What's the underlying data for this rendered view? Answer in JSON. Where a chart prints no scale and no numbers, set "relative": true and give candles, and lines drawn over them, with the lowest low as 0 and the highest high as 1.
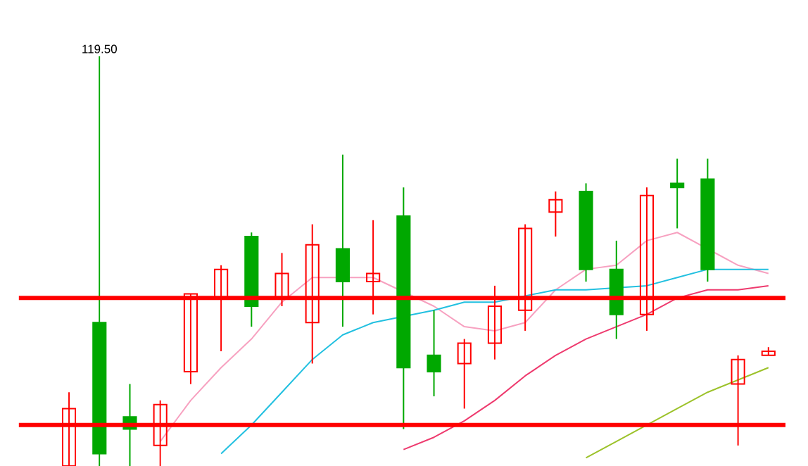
{
  "chart_data": {
    "type": "candlestick",
    "relative": true,
    "categories": [
      null,
      null,
      null,
      null,
      null,
      null,
      null,
      null,
      null,
      null,
      null,
      null,
      null,
      null,
      null,
      null,
      null,
      null,
      null,
      null,
      null,
      null,
      null,
      null
    ],
    "ohlc": [
      [
        0,
        0.18,
        0,
        0.14
      ],
      [
        0.35,
        1,
        0,
        0.03
      ],
      [
        0.12,
        0.2,
        0,
        0.09
      ],
      [
        0.05,
        0.16,
        0,
        0.15
      ],
      [
        0.23,
        0.42,
        0.2,
        0.42
      ],
      [
        0.41,
        0.49,
        0.28,
        0.48
      ],
      [
        0.56,
        0.57,
        0.34,
        0.39
      ],
      [
        0.41,
        0.52,
        0.39,
        0.47
      ],
      [
        0.35,
        0.59,
        0.25,
        0.54
      ],
      [
        0.53,
        0.76,
        0.34,
        0.45
      ],
      [
        0.45,
        0.6,
        0.37,
        0.47
      ],
      [
        0.61,
        0.68,
        0.09,
        0.24
      ],
      [
        0.27,
        0.38,
        0.17,
        0.23
      ],
      [
        0.25,
        0.31,
        0.14,
        0.3
      ],
      [
        0.3,
        0.44,
        0.26,
        0.39
      ],
      [
        0.38,
        0.59,
        0.33,
        0.58
      ],
      [
        0.62,
        0.67,
        0.56,
        0.65
      ],
      [
        0.67,
        0.69,
        0.45,
        0.48
      ],
      [
        0.48,
        0.55,
        0.31,
        0.37
      ],
      [
        0.37,
        0.68,
        0.33,
        0.66
      ],
      [
        0.69,
        0.75,
        0.58,
        0.68
      ],
      [
        0.7,
        0.75,
        0.45,
        0.48
      ],
      [
        0.2,
        0.27,
        0.05,
        0.26
      ],
      [
        0.27,
        0.29,
        0.27,
        0.28
      ]
    ],
    "colors": [
      "#ff0000",
      "#00a800",
      "#00a800",
      "#ff0000",
      "#ff0000",
      "#ff0000",
      "#00a800",
      "#ff0000",
      "#ff0000",
      "#00a800",
      "#ff0000",
      "#00a800",
      "#00a800",
      "#ff0000",
      "#ff0000",
      "#ff0000",
      "#ff0000",
      "#00a800",
      "#00a800",
      "#ff0000",
      "#00a800",
      "#00a800",
      "#ff0000",
      "#ff0000"
    ],
    "series": [
      {
        "type": "line",
        "color": "#f7a1c0",
        "values": [
          null,
          null,
          null,
          0.06,
          0.16,
          0.24,
          0.31,
          0.4,
          0.46,
          null,
          0.46,
          null,
          0.39,
          0.34,
          0.33,
          0.35,
          0.43,
          0.48,
          0.49,
          0.55,
          0.57,
          null,
          0.49,
          0.47
        ]
      },
      {
        "type": "line",
        "color": "#22c0e0",
        "values": [
          null,
          null,
          null,
          null,
          null,
          0.03,
          0.1,
          0.18,
          0.26,
          0.32,
          0.35,
          null,
          0.38,
          0.4,
          0.4,
          null,
          0.43,
          0.43,
          null,
          0.44,
          0.46,
          0.48,
          0.48,
          0.48
        ]
      },
      {
        "type": "line",
        "color": "#ee3a6e",
        "values": [
          null,
          null,
          null,
          null,
          null,
          null,
          null,
          null,
          null,
          null,
          null,
          0.04,
          0.07,
          0.11,
          0.16,
          0.22,
          0.27,
          0.31,
          0.34,
          0.37,
          0.41,
          0.43,
          0.43,
          0.44
        ]
      },
      {
        "type": "line",
        "color": "#9cc22a",
        "values": [
          null,
          null,
          null,
          null,
          null,
          null,
          null,
          null,
          null,
          null,
          null,
          null,
          null,
          null,
          null,
          null,
          null,
          0.02,
          0.06,
          0.1,
          0.14,
          0.18,
          0.21,
          0.24
        ]
      }
    ],
    "marker": "none",
    "line_style": "solid",
    "ref_lines": [
      {
        "axis": "y",
        "value": 0.41,
        "color": "#ff0000"
      },
      {
        "axis": "y",
        "value": 0.1,
        "color": "#ff0000"
      }
    ],
    "annotations": [
      {
        "text": "119.50",
        "y": 1
      }
    ]
  }
}
